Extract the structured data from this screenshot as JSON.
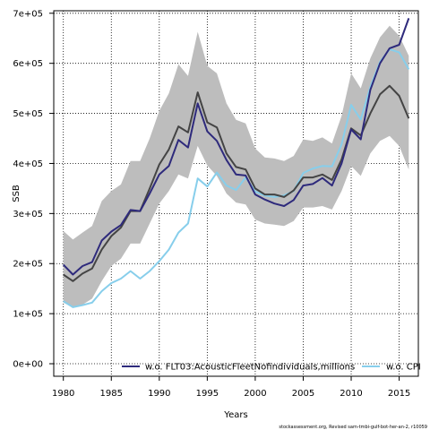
{
  "chart_data": {
    "type": "line",
    "xlabel": "Years",
    "ylabel": "SSB",
    "xlim": [
      1979,
      2017
    ],
    "ylim": [
      -25000,
      705000
    ],
    "x_ticks": [
      1980,
      1985,
      1990,
      1995,
      2000,
      2005,
      2010,
      2015
    ],
    "y_ticks": [
      0,
      100000,
      200000,
      300000,
      400000,
      500000,
      600000,
      700000
    ],
    "y_tick_labels": [
      "0e+00",
      "1e+05",
      "2e+05",
      "3e+05",
      "4e+05",
      "5e+05",
      "6e+05",
      "7e+05"
    ],
    "grid": "dotted",
    "legend_position": "bottom",
    "colors": {
      "base": "#444444",
      "band": "#bdbdbd",
      "flt03": "#2e2a7c",
      "cpi": "#87ceeb"
    },
    "x": [
      1980,
      1981,
      1982,
      1983,
      1984,
      1985,
      1986,
      1987,
      1988,
      1989,
      1990,
      1991,
      1992,
      1993,
      1994,
      1995,
      1996,
      1997,
      1998,
      1999,
      2000,
      2001,
      2002,
      2003,
      2004,
      2005,
      2006,
      2007,
      2008,
      2009,
      2010,
      2011,
      2012,
      2013,
      2014,
      2015,
      2016
    ],
    "band": {
      "upper": [
        265000,
        248000,
        262000,
        275000,
        325000,
        345000,
        358000,
        405000,
        405000,
        450000,
        505000,
        540000,
        598000,
        575000,
        663000,
        595000,
        580000,
        520000,
        487000,
        480000,
        430000,
        412000,
        410000,
        405000,
        415000,
        448000,
        445000,
        452000,
        440000,
        495000,
        580000,
        550000,
        610000,
        652000,
        675000,
        655000,
        615000
      ],
      "lower": [
        122000,
        112000,
        118000,
        130000,
        165000,
        195000,
        210000,
        240000,
        240000,
        280000,
        320000,
        345000,
        378000,
        370000,
        435000,
        396000,
        375000,
        340000,
        322000,
        318000,
        288000,
        280000,
        278000,
        275000,
        285000,
        312000,
        312000,
        315000,
        308000,
        345000,
        395000,
        375000,
        420000,
        445000,
        455000,
        435000,
        388000
      ]
    },
    "series": [
      {
        "values": [
          178000,
          165000,
          180000,
          190000,
          228000,
          255000,
          272000,
          305000,
          305000,
          350000,
          398000,
          428000,
          474000,
          462000,
          542000,
          482000,
          472000,
          420000,
          393000,
          388000,
          350000,
          338000,
          338000,
          333000,
          346000,
          372000,
          372000,
          378000,
          367000,
          408000,
          470000,
          456000,
          500000,
          538000,
          555000,
          535000,
          490000
        ]
      },
      {
        "name": "w.o. FLT03:AcousticFleetNofindividuals,millions",
        "values": [
          198000,
          178000,
          195000,
          203000,
          246000,
          264000,
          277000,
          307000,
          305000,
          340000,
          378000,
          395000,
          447000,
          432000,
          520000,
          464000,
          445000,
          407000,
          378000,
          376000,
          338000,
          328000,
          320000,
          315000,
          327000,
          356000,
          359000,
          371000,
          356000,
          400000,
          468000,
          448000,
          547000,
          600000,
          630000,
          637000,
          690000
        ]
      },
      {
        "name": "w.o. CPI",
        "values": [
          125000,
          113000,
          117000,
          122000,
          145000,
          161000,
          170000,
          185000,
          170000,
          185000,
          205000,
          228000,
          262000,
          280000,
          370000,
          354000,
          382000,
          356000,
          347000,
          372000,
          344000,
          336000,
          333000,
          336000,
          345000,
          381000,
          390000,
          395000,
          394000,
          438000,
          517000,
          488000,
          553000,
          603000,
          628000,
          622000,
          588000
        ]
      }
    ],
    "legend": [
      {
        "label": "w.o. FLT03:AcousticFleetNofindividuals,millions",
        "color": "#2e2a7c"
      },
      {
        "label": "w.o. CPI",
        "color": "#87ceeb"
      }
    ],
    "credit": "stockassessment.org, Revised sam-tmbi-gulf-bot-her-an-2, r10059"
  }
}
